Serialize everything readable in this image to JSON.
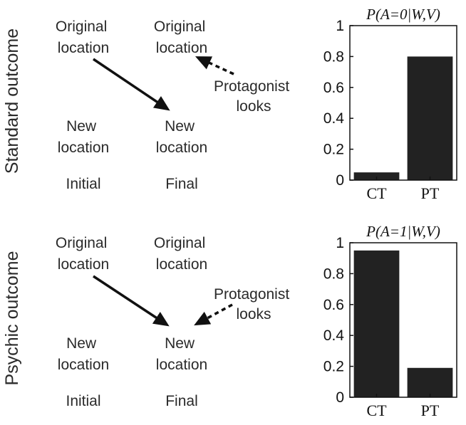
{
  "rows": [
    {
      "title": "Standard outcome",
      "labels": {
        "orig_initial": [
          "Original",
          "location"
        ],
        "orig_final": [
          "Original",
          "location"
        ],
        "new_initial": [
          "New",
          "location"
        ],
        "new_final": [
          "New",
          "location"
        ],
        "protagonist": [
          "Protagonist",
          "looks"
        ],
        "col_initial": "Initial",
        "col_final": "Final"
      }
    },
    {
      "title": "Psychic outcome",
      "labels": {
        "orig_initial": [
          "Original",
          "location"
        ],
        "orig_final": [
          "Original",
          "location"
        ],
        "new_initial": [
          "New",
          "location"
        ],
        "new_final": [
          "New",
          "location"
        ],
        "protagonist": [
          "Protagonist",
          "looks"
        ],
        "col_initial": "Initial",
        "col_final": "Final"
      }
    }
  ],
  "chart_data": [
    {
      "type": "bar",
      "title": "P(A=0|W,V)",
      "categories": [
        "CT",
        "PT"
      ],
      "values": [
        0.05,
        0.8
      ],
      "ylim": [
        0,
        1
      ],
      "yticks": [
        "0",
        "0.2",
        "0.4",
        "0.6",
        "0.8",
        "1"
      ],
      "bar_color": "#222222"
    },
    {
      "type": "bar",
      "title": "P(A=1|W,V)",
      "categories": [
        "CT",
        "PT"
      ],
      "values": [
        0.95,
        0.19
      ],
      "ylim": [
        0,
        1
      ],
      "yticks": [
        "0",
        "0.2",
        "0.4",
        "0.6",
        "0.8",
        "1"
      ],
      "bar_color": "#222222"
    }
  ]
}
